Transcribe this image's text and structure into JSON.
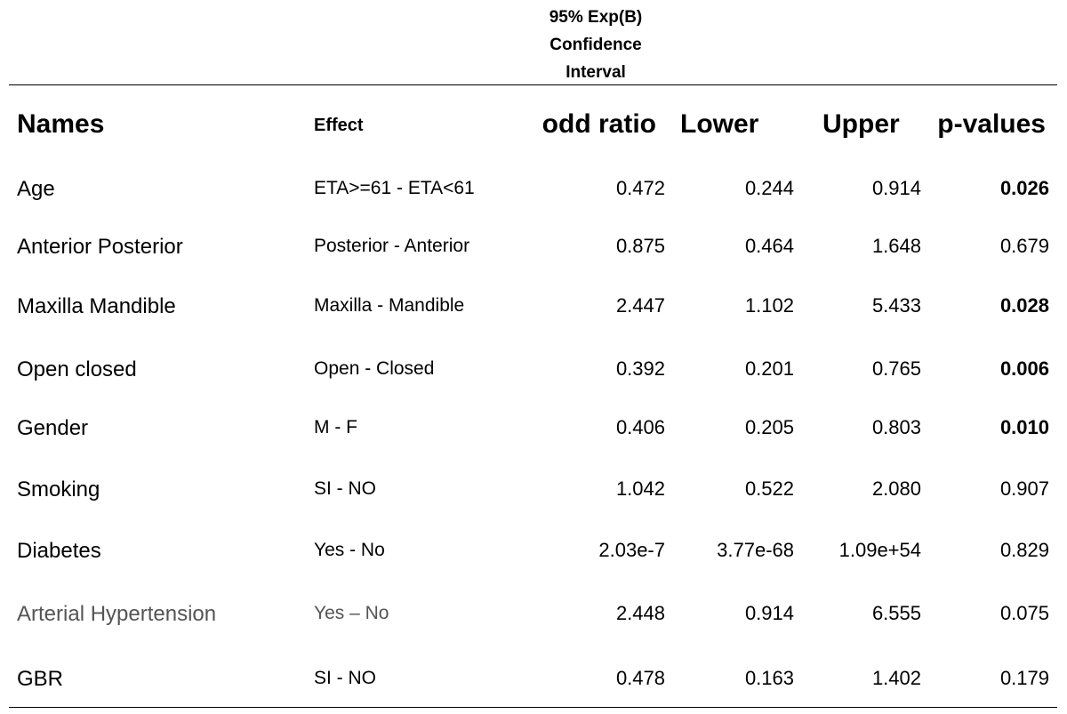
{
  "ci_header": [
    "95% Exp(B)",
    "Confidence",
    "Interval"
  ],
  "headers": {
    "names": "Names",
    "effect": "Effect",
    "odd_ratio": "odd ratio",
    "lower": "Lower",
    "upper": "Upper",
    "p_values": "p-values"
  },
  "rows": [
    {
      "name": "Age",
      "effect": "ETA>=61 - ETA<61",
      "odd_ratio": "0.472",
      "lower": "0.244",
      "upper": "0.914",
      "p": "0.026",
      "p_bold": true,
      "muted": false
    },
    {
      "name": "Anterior Posterior",
      "effect": "Posterior - Anterior",
      "odd_ratio": "0.875",
      "lower": "0.464",
      "upper": "1.648",
      "p": "0.679",
      "p_bold": false,
      "muted": false
    },
    {
      "name": "Maxilla Mandible",
      "effect": "Maxilla - Mandible",
      "odd_ratio": "2.447",
      "lower": "1.102",
      "upper": "5.433",
      "p": "0.028",
      "p_bold": true,
      "muted": false
    },
    {
      "name": "Open closed",
      "effect": "Open - Closed",
      "odd_ratio": "0.392",
      "lower": "0.201",
      "upper": "0.765",
      "p": "0.006",
      "p_bold": true,
      "muted": false
    },
    {
      "name": "Gender",
      "effect": "M - F",
      "odd_ratio": "0.406",
      "lower": "0.205",
      "upper": "0.803",
      "p": "0.010",
      "p_bold": true,
      "muted": false
    },
    {
      "name": "Smoking",
      "effect": "SI - NO",
      "odd_ratio": "1.042",
      "lower": "0.522",
      "upper": "2.080",
      "p": "0.907",
      "p_bold": false,
      "muted": false
    },
    {
      "name": "Diabetes",
      "effect": "Yes - No",
      "odd_ratio": "2.03e-7",
      "lower": "3.77e-68",
      "upper": "1.09e+54",
      "p": "0.829",
      "p_bold": false,
      "muted": false
    },
    {
      "name": "Arterial Hypertension",
      "effect": "Yes – No",
      "odd_ratio": "2.448",
      "lower": "0.914",
      "upper": "6.555",
      "p": "0.075",
      "p_bold": false,
      "muted": true
    },
    {
      "name": "GBR",
      "effect": "SI - NO",
      "odd_ratio": "0.478",
      "lower": "0.163",
      "upper": "1.402",
      "p": "0.179",
      "p_bold": false,
      "muted": false
    }
  ]
}
